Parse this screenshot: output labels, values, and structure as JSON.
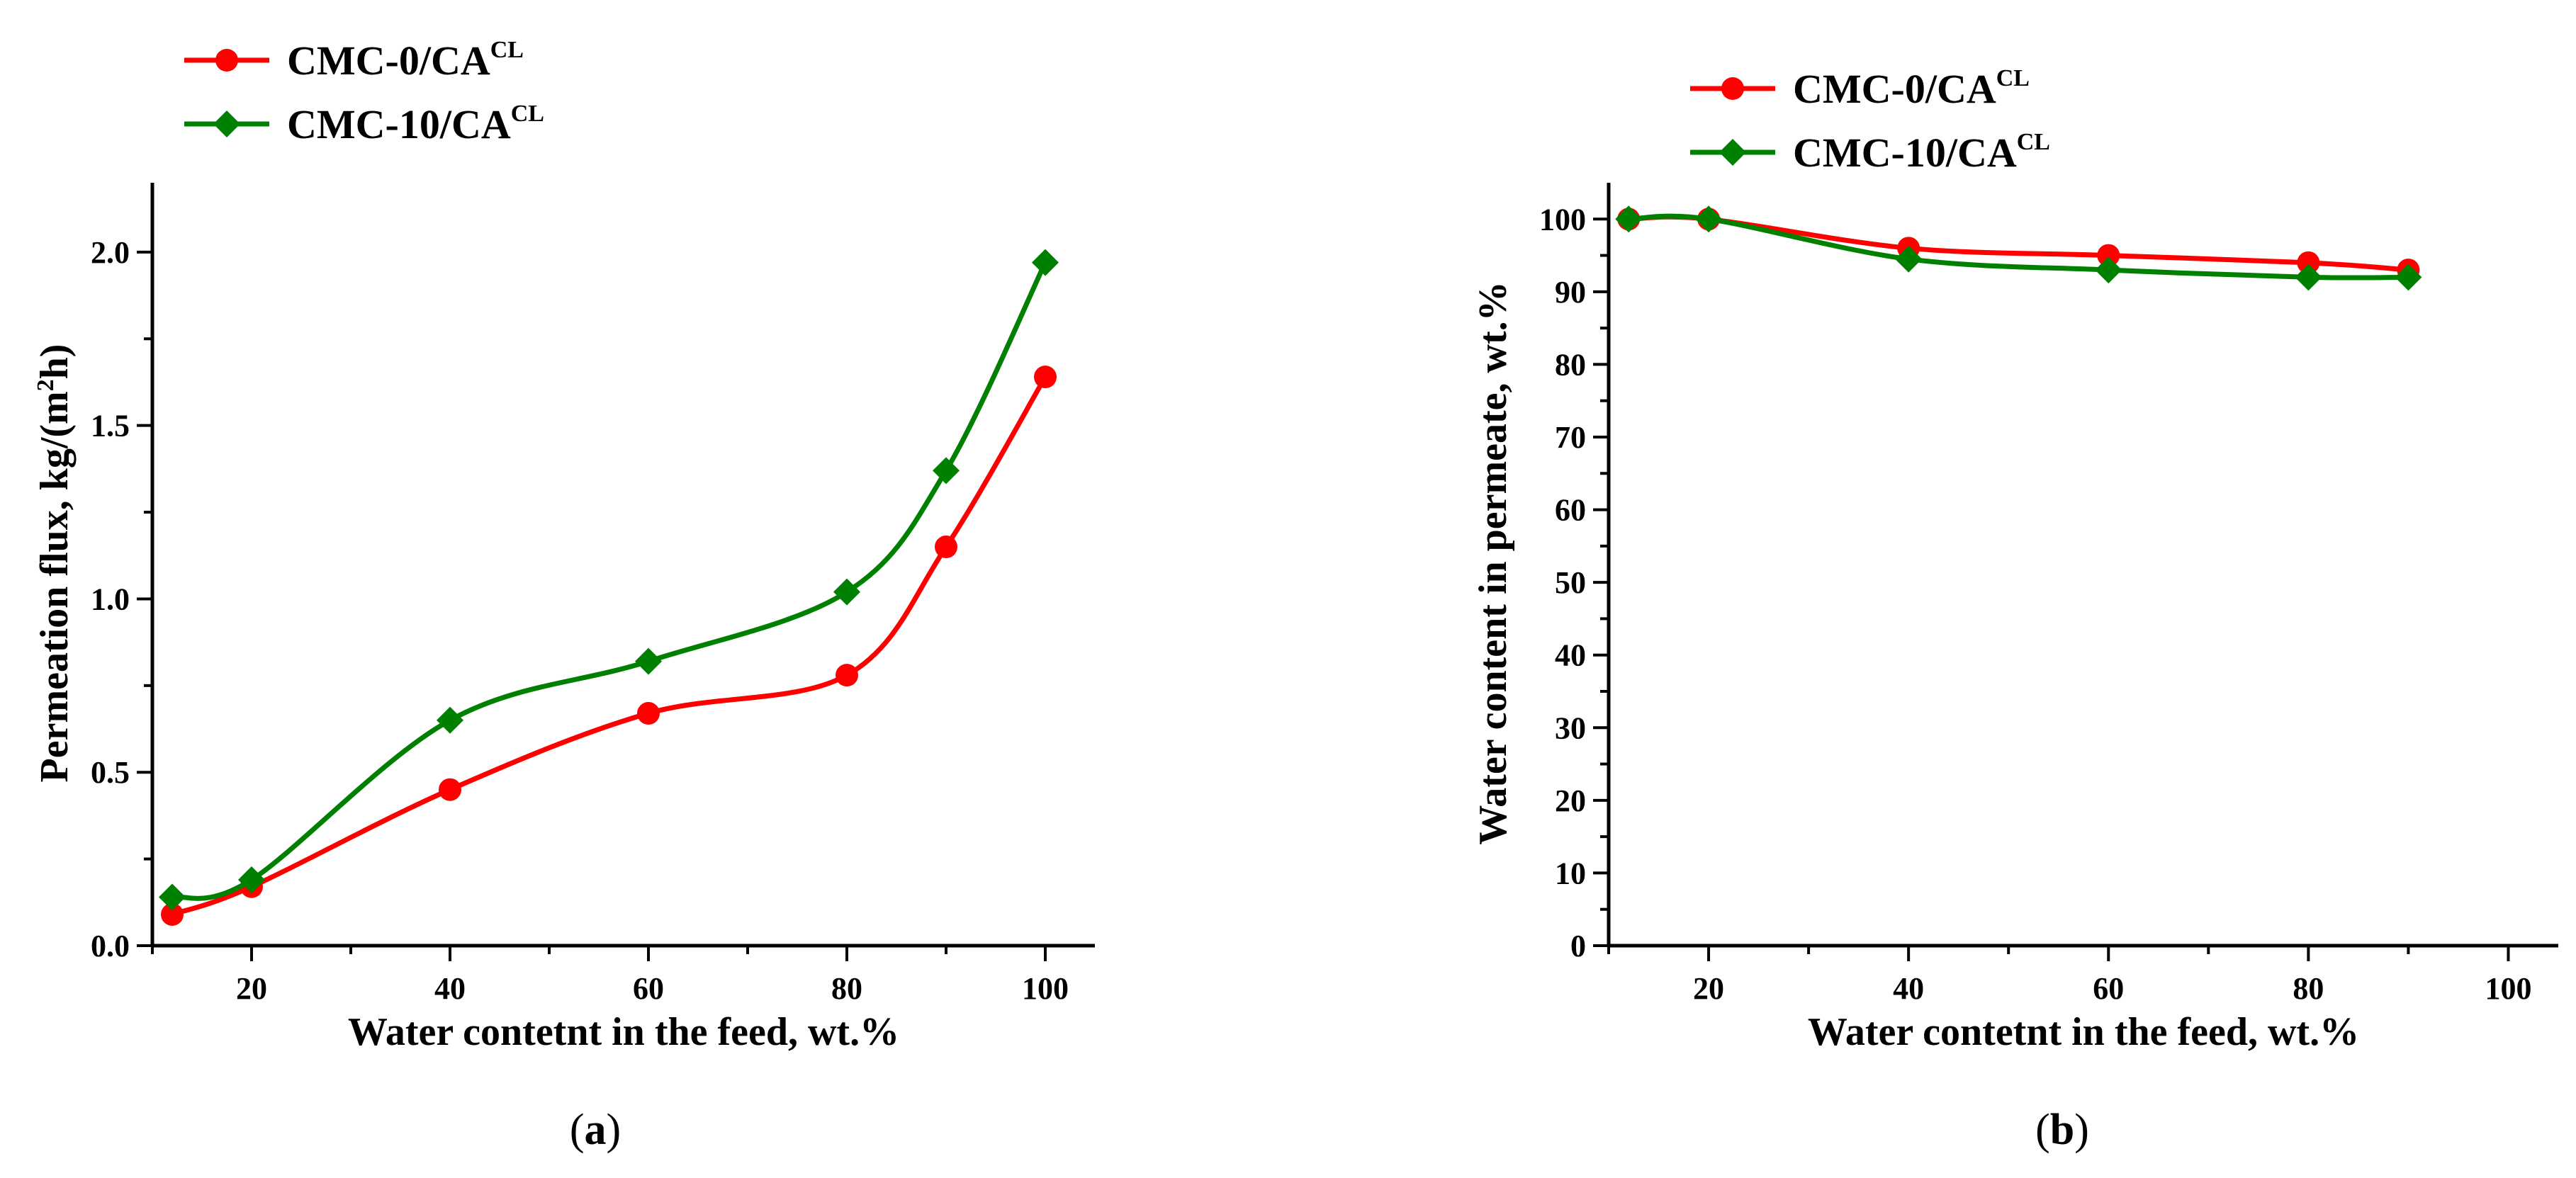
{
  "chart_data": [
    {
      "type": "line",
      "panel_label_prefix": "(",
      "panel_label": "a",
      "panel_label_suffix": ")",
      "xlabel": "Water contetnt in the feed, wt.%",
      "ylabel_main": "Permeation flux, kg/(m",
      "ylabel_sup": "2",
      "ylabel_end": "h)",
      "xlim": [
        10,
        105
      ],
      "ylim": [
        0,
        2.2
      ],
      "xticks": [
        20,
        40,
        60,
        80,
        100
      ],
      "xtick_labels": [
        "20",
        "40",
        "60",
        "80",
        "100"
      ],
      "yticks": [
        0,
        0.5,
        1.0,
        1.5,
        2.0
      ],
      "ytick_labels": [
        "0.0",
        "0.5",
        "1.0",
        "1.5",
        "2.0"
      ],
      "x": [
        12,
        20,
        40,
        60,
        80,
        90,
        100
      ],
      "series": [
        {
          "name": "CMC-0/CA",
          "name_sup": "CL",
          "color": "#ff0000",
          "marker": "circle",
          "values": [
            0.09,
            0.17,
            0.45,
            0.67,
            0.78,
            1.15,
            1.64
          ]
        },
        {
          "name": "CMC-10/CA",
          "name_sup": "CL",
          "color": "#008000",
          "marker": "diamond",
          "values": [
            0.14,
            0.19,
            0.65,
            0.82,
            1.02,
            1.37,
            1.97
          ]
        }
      ],
      "legend_position": "top-left"
    },
    {
      "type": "line",
      "panel_label_prefix": "(",
      "panel_label": "b",
      "panel_label_suffix": ")",
      "xlabel": "Water contetnt in the feed, wt.%",
      "ylabel": "Water content in permeate, wt.%",
      "xlim": [
        10,
        105
      ],
      "ylim": [
        0,
        105
      ],
      "xticks": [
        20,
        40,
        60,
        80,
        100
      ],
      "xtick_labels": [
        "20",
        "40",
        "60",
        "80",
        "100"
      ],
      "yticks": [
        0,
        10,
        20,
        30,
        40,
        50,
        60,
        70,
        80,
        90,
        100
      ],
      "ytick_labels": [
        "0",
        "10",
        "20",
        "30",
        "40",
        "50",
        "60",
        "70",
        "80",
        "90",
        "100"
      ],
      "x": [
        12,
        20,
        40,
        60,
        80,
        90
      ],
      "series": [
        {
          "name": "CMC-0/CA",
          "name_sup": "CL",
          "color": "#ff0000",
          "marker": "circle",
          "values": [
            100,
            100,
            96,
            95,
            94,
            93
          ]
        },
        {
          "name": "CMC-10/CA",
          "name_sup": "CL",
          "color": "#008000",
          "marker": "diamond",
          "values": [
            100,
            100,
            94.5,
            93,
            92,
            92
          ]
        }
      ],
      "legend_position": "top-left"
    }
  ]
}
